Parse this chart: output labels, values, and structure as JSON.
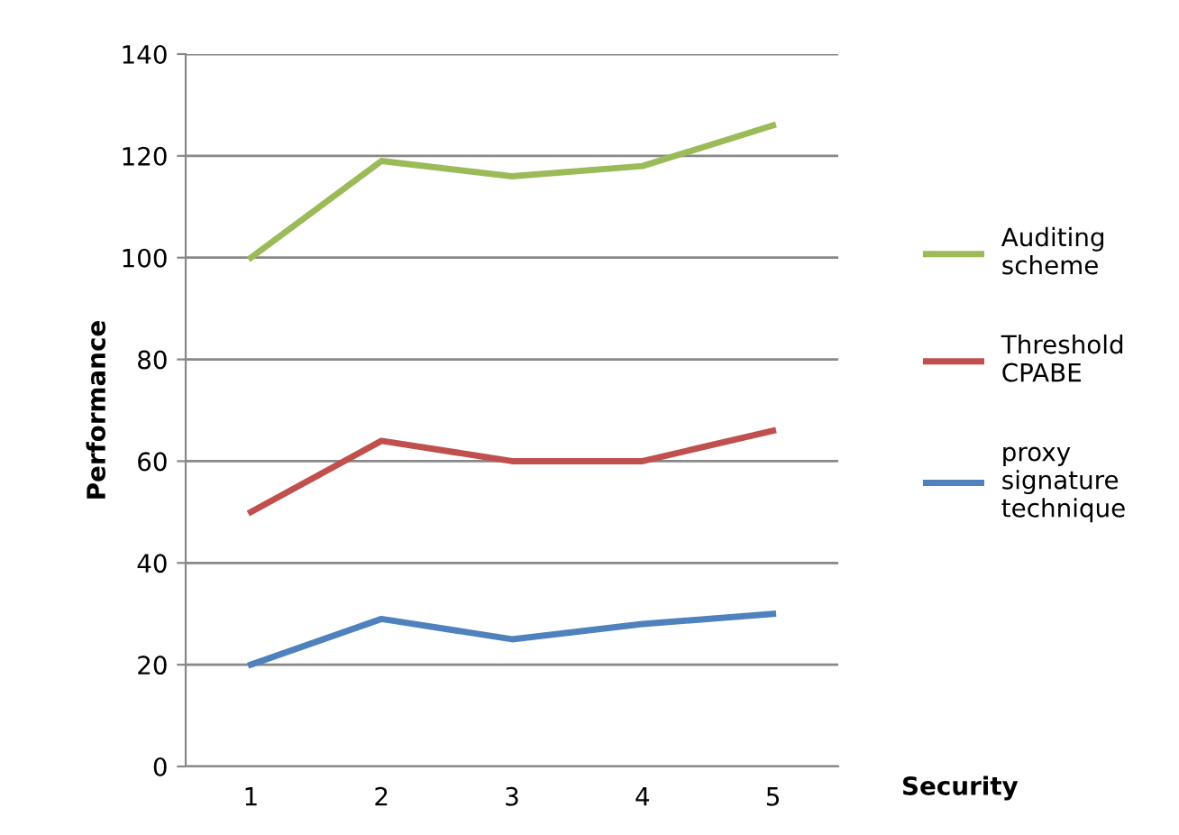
{
  "chart_data": {
    "type": "line",
    "xlabel": "Security",
    "ylabel": "Performance",
    "categories": [
      "1",
      "2",
      "3",
      "4",
      "5"
    ],
    "series": [
      {
        "name": "Auditing scheme",
        "color": "#9bbb59",
        "values": [
          100,
          119,
          116,
          118,
          126
        ]
      },
      {
        "name": "Threshold CPABE",
        "color": "#c0504d",
        "values": [
          50,
          64,
          60,
          60,
          66
        ]
      },
      {
        "name": "proxy signature technique",
        "color": "#4f81bd",
        "values": [
          20,
          29,
          25,
          28,
          30
        ]
      }
    ],
    "ylim": [
      0,
      140
    ],
    "yticks": [
      0,
      20,
      40,
      60,
      80,
      100,
      120,
      140
    ],
    "grid": "y",
    "legend": "right",
    "marker": "none",
    "line_style": "solid"
  }
}
